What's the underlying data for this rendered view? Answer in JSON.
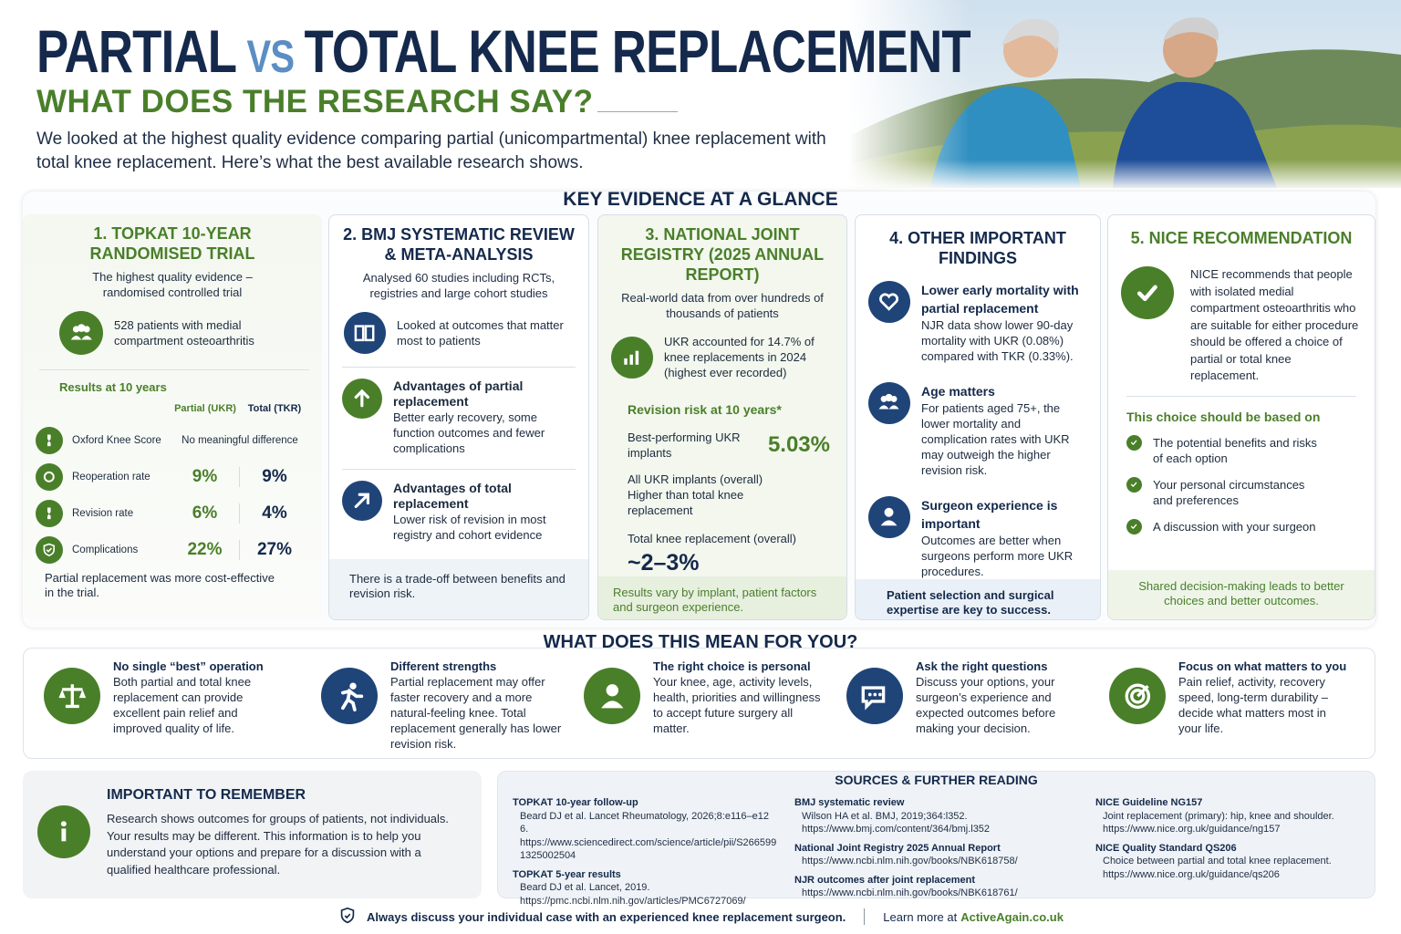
{
  "header": {
    "title_part1": "PARTIAL",
    "title_vs": "VS",
    "title_part2": "TOTAL KNEE REPLACEMENT",
    "subtitle": "WHAT DOES THE RESEARCH SAY?",
    "intro": "We looked at the highest quality evidence comparing partial (unicompartmental) knee replacement with total knee replacement. Here’s what the best available research shows."
  },
  "key_evidence": {
    "heading": "KEY EVIDENCE AT A GLANCE",
    "topkat": {
      "title": "1. TOPKAT 10-YEAR RANDOMISED TRIAL",
      "subtitle": "The highest quality evidence – randomised controlled trial",
      "patients": "528 patients with medial compartment osteoarthritis",
      "results_heading": "Results at 10 years",
      "col_partial": "Partial (UKR)",
      "col_total": "Total (TKR)",
      "rows": [
        {
          "label": "Oxford Knee Score",
          "note": "No meaningful difference"
        },
        {
          "label": "Reoperation rate",
          "partial": "9%",
          "total": "9%"
        },
        {
          "label": "Revision rate",
          "partial": "6%",
          "total": "4%"
        },
        {
          "label": "Complications",
          "partial": "22%",
          "total": "27%"
        }
      ],
      "footer": "Partial replacement was more cost-effective in the trial."
    },
    "bmj": {
      "title": "2. BMJ SYSTEMATIC REVIEW & META-ANALYSIS",
      "subtitle": "Analysed 60 studies including RCTs, registries and large cohort studies",
      "lead": "Looked at outcomes that matter most to patients",
      "items": [
        {
          "heading": "Advantages of partial replacement",
          "text": "Better early recovery, some function outcomes and fewer complications"
        },
        {
          "heading": "Advantages of total replacement",
          "text": "Lower risk of revision in most registry and cohort evidence"
        }
      ],
      "footer": "There is a trade-off between benefits and revision risk."
    },
    "njr": {
      "title": "3. NATIONAL JOINT REGISTRY (2025 ANNUAL REPORT)",
      "subtitle": "Real-world data from over hundreds of thousands of patients",
      "stat": "UKR accounted for 14.7% of knee replacements in 2024 (highest ever recorded)",
      "revision_heading": "Revision risk at 10 years*",
      "rows": [
        {
          "label": "Best-performing UKR implants",
          "value": "5.03%"
        },
        {
          "label": "All UKR implants (overall)",
          "value": "Higher than total knee replacement"
        },
        {
          "label": "Total knee replacement (overall)",
          "value": "~2–3%"
        }
      ],
      "footer": "Results vary by implant, patient factors and surgeon experience."
    },
    "other": {
      "title": "4. OTHER IMPORTANT FINDINGS",
      "items": [
        {
          "heading": "Lower early mortality with partial replacement",
          "text": "NJR data show lower 90-day mortality with UKR (0.08%) compared with TKR (0.33%)."
        },
        {
          "heading": "Age matters",
          "text": "For patients aged 75+, the lower mortality and complication rates with UKR may outweigh the higher revision risk."
        },
        {
          "heading": "Surgeon experience is important",
          "text": "Outcomes are better when surgeons perform more UKR procedures."
        }
      ],
      "footer": "Patient selection and surgical expertise are key to success."
    },
    "nice": {
      "title": "5. NICE RECOMMENDATION",
      "text": "NICE recommends that people with isolated medial compartment osteoarthritis who are suitable for either procedure should be offered a choice of partial or total knee replacement.",
      "basis_heading": "This choice should be based on",
      "bullets": [
        "The potential benefits and risks of each option",
        "Your personal circumstances and preferences",
        "A discussion with your surgeon"
      ],
      "footer": "Shared decision-making leads to better choices and better outcomes."
    }
  },
  "meaning": {
    "heading": "WHAT DOES THIS MEAN FOR YOU?",
    "items": [
      {
        "heading": "No single “best” operation",
        "text": "Both partial and total knee replacement can provide excellent pain relief and improved quality of life."
      },
      {
        "heading": "Different strengths",
        "text": "Partial replacement may offer faster recovery and a more natural-feeling knee. Total replacement generally has lower revision risk."
      },
      {
        "heading": "The right choice is personal",
        "text": "Your knee, age, activity levels, health, priorities and willingness to accept future surgery all matter."
      },
      {
        "heading": "Ask the right questions",
        "text": "Discuss your options, your surgeon’s experience and expected outcomes before making your decision."
      },
      {
        "heading": "Focus on what matters to you",
        "text": "Pain relief, activity, recovery speed, long-term durability – decide what matters most in your life."
      }
    ]
  },
  "remember": {
    "heading": "IMPORTANT TO REMEMBER",
    "text": "Research shows outcomes for groups of patients, not individuals. Your results may be different. This information is to help you understand your options and prepare for a discussion with a qualified healthcare professional."
  },
  "sources": {
    "heading": "SOURCES & FURTHER READING",
    "columns": [
      [
        {
          "title": "TOPKAT 10-year follow-up",
          "lines": [
            "Beard DJ et al. Lancet Rheumatology, 2026;8:e116–e126.",
            "https://www.sciencedirect.com/science/article/pii/S2665991325002504"
          ]
        },
        {
          "title": "TOPKAT 5-year results",
          "lines": [
            "Beard DJ et al. Lancet, 2019.",
            "https://pmc.ncbi.nlm.nih.gov/articles/PMC6727069/"
          ]
        }
      ],
      [
        {
          "title": "BMJ systematic review",
          "lines": [
            "Wilson HA et al. BMJ, 2019;364:l352.",
            "https://www.bmj.com/content/364/bmj.l352"
          ]
        },
        {
          "title": "National Joint Registry 2025 Annual Report",
          "lines": [
            "https://www.ncbi.nlm.nih.gov/books/NBK618758/"
          ]
        },
        {
          "title": "NJR outcomes after joint replacement",
          "lines": [
            "https://www.ncbi.nlm.nih.gov/books/NBK618761/"
          ]
        }
      ],
      [
        {
          "title": "NICE Guideline NG157",
          "lines": [
            "Joint replacement (primary): hip, knee and shoulder.",
            "https://www.nice.org.uk/guidance/ng157"
          ]
        },
        {
          "title": "NICE Quality Standard QS206",
          "lines": [
            "Choice between partial and total knee replacement.",
            "https://www.nice.org.uk/guidance/qs206"
          ]
        }
      ]
    ]
  },
  "footer": {
    "note": "Always discuss your individual case with an experienced knee replacement surgeon.",
    "learn_more": "Learn more at",
    "site": "ActiveAgain.co.uk"
  }
}
